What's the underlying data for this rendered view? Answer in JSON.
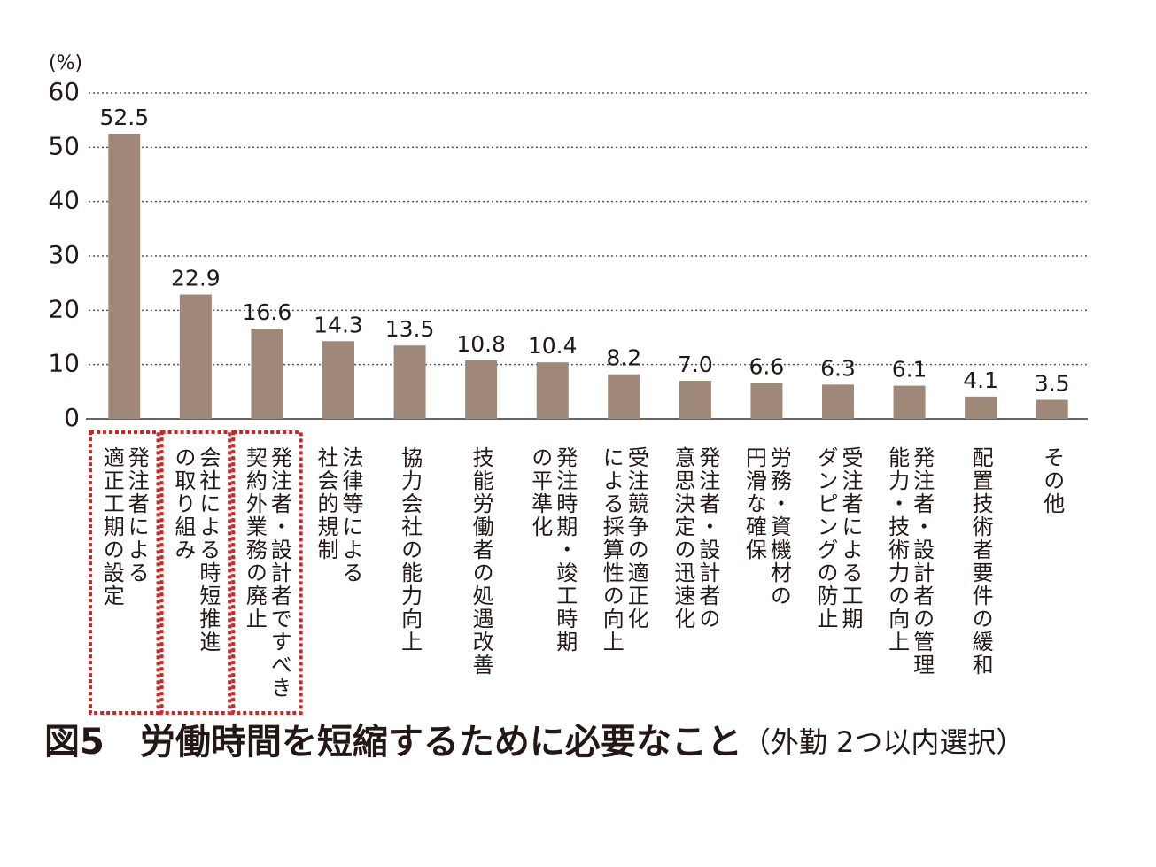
{
  "chart_data": {
    "type": "bar",
    "title": "図5　労働時間を短縮するために必要なこと",
    "subtitle": "（外勤 2つ以内選択）",
    "y_unit": "(%)",
    "categories": [
      [
        "発注者による",
        "適正工期の設定"
      ],
      [
        "会社による時短推進",
        "の取り組み"
      ],
      [
        "発注者・設計者ですべき",
        "契約外業務の廃止"
      ],
      [
        "法律等による",
        "社会的規制"
      ],
      [
        "協力会社の能力向上"
      ],
      [
        "技能労働者の処遇改善"
      ],
      [
        "発注時期・竣工時期",
        "の平準化"
      ],
      [
        "受注競争の適正化",
        "による採算性の向上"
      ],
      [
        "発注者・設計者の",
        "意思決定の迅速化"
      ],
      [
        "労務・資機材の",
        "円滑な確保"
      ],
      [
        "受注者による工期",
        "ダンピングの防止"
      ],
      [
        "発注者・設計者の管理",
        "能力・技術力の向上"
      ],
      [
        "配置技術者要件の緩和"
      ],
      [
        "その他"
      ]
    ],
    "values": [
      52.5,
      22.9,
      16.6,
      14.3,
      13.5,
      10.8,
      10.4,
      8.2,
      7.0,
      6.6,
      6.3,
      6.1,
      4.1,
      3.5
    ],
    "value_labels": [
      "52.5",
      "22.9",
      "16.6",
      "14.3",
      "13.5",
      "10.8",
      "10.4",
      "8.2",
      "7.0",
      "6.6",
      "6.3",
      "6.1",
      "4.1",
      "3.5"
    ],
    "highlighted": [
      true,
      true,
      true,
      false,
      false,
      false,
      false,
      false,
      false,
      false,
      false,
      false,
      false,
      false
    ],
    "highlight_color": "#d42323",
    "color": "#a08878",
    "ylim": [
      0,
      60
    ],
    "yticks": [
      0,
      10,
      20,
      30,
      40,
      50,
      60
    ],
    "grid": true
  }
}
